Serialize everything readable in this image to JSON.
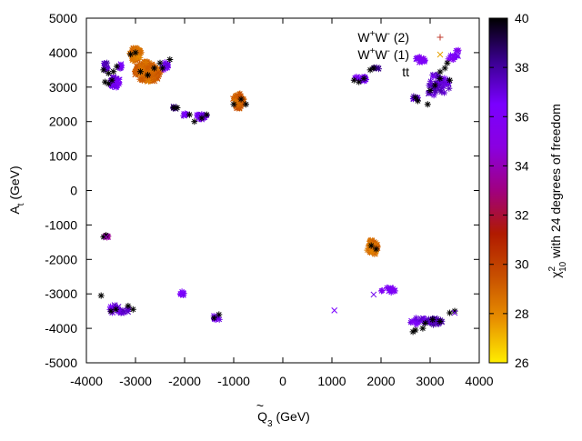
{
  "chart_data": {
    "type": "scatter",
    "xlabel_base": "Q",
    "xlabel_tilde": "~",
    "xlabel_sub": "3",
    "xlabel_unit": " (GeV)",
    "ylabel_base": "A",
    "ylabel_sub": "t",
    "ylabel_unit": " (GeV)",
    "xlim": [
      -4000,
      4000
    ],
    "ylim": [
      -5000,
      5000
    ],
    "x_ticks": [
      -4000,
      -3000,
      -2000,
      -1000,
      0,
      1000,
      2000,
      3000,
      4000
    ],
    "y_ticks": [
      -5000,
      -4000,
      -3000,
      -2000,
      -1000,
      0,
      1000,
      2000,
      3000,
      4000,
      5000
    ],
    "grid": false,
    "legend_position": "top-right",
    "legend": [
      {
        "text_base": "W",
        "sup1": "+",
        "mid": "W",
        "sup2": "-",
        "suffix": " (2)",
        "marker": "plus",
        "color": "#c0392b"
      },
      {
        "text_base": "W",
        "sup1": "+",
        "mid": "W",
        "sup2": "-",
        "suffix": " (1)",
        "marker": "cross",
        "color": "#e6a100"
      },
      {
        "text_plain": "tt",
        "marker": "star",
        "color": "#000000"
      }
    ],
    "colorbar": {
      "label_prefix": "χ",
      "label_sup": "2",
      "label_sub": "10",
      "label_suffix": " with 24 degrees of freedom",
      "min": 26,
      "max": 40,
      "ticks": [
        26,
        28,
        30,
        32,
        34,
        36,
        38,
        40
      ],
      "gradient": [
        "#ffee00",
        "#e89000",
        "#c85000",
        "#b01a00",
        "#a00080",
        "#8a00e0",
        "#7a00ff",
        "#3a0090",
        "#000000"
      ]
    },
    "series": [
      {
        "name": "tt",
        "marker": "star",
        "points": [
          [
            -3650,
            3500
          ],
          [
            -3550,
            3400
          ],
          [
            -3450,
            3450
          ],
          [
            -3620,
            3150
          ],
          [
            -3480,
            3200
          ],
          [
            -3550,
            3100
          ],
          [
            -3380,
            3600
          ],
          [
            -3100,
            3950
          ],
          [
            -3000,
            4000
          ],
          [
            -2900,
            3450
          ],
          [
            -2750,
            3350
          ],
          [
            -2620,
            3550
          ],
          [
            -2500,
            3700
          ],
          [
            -2450,
            3550
          ],
          [
            -2300,
            3800
          ],
          [
            -2220,
            2400
          ],
          [
            -2150,
            2400
          ],
          [
            -1900,
            2200
          ],
          [
            -1800,
            2000
          ],
          [
            -1650,
            2100
          ],
          [
            -1550,
            2200
          ],
          [
            -1000,
            2500
          ],
          [
            -850,
            2650
          ],
          [
            -750,
            2500
          ],
          [
            1450,
            3200
          ],
          [
            1550,
            3150
          ],
          [
            1650,
            3250
          ],
          [
            1780,
            3500
          ],
          [
            1850,
            3550
          ],
          [
            2700,
            2700
          ],
          [
            2750,
            2600
          ],
          [
            2950,
            2500
          ],
          [
            3000,
            2900
          ],
          [
            3100,
            3050
          ],
          [
            3200,
            3250
          ],
          [
            3300,
            3550
          ],
          [
            3350,
            3700
          ],
          [
            3400,
            3200
          ],
          [
            -3600,
            -1300
          ],
          [
            -3650,
            -1350
          ],
          [
            -3700,
            -3050
          ],
          [
            -3500,
            -3500
          ],
          [
            -3400,
            -3450
          ],
          [
            -3150,
            -3350
          ],
          [
            -3050,
            -3450
          ],
          [
            -1400,
            -3700
          ],
          [
            -1300,
            -3600
          ],
          [
            1800,
            -1600
          ],
          [
            1900,
            -1700
          ],
          [
            2650,
            -4100
          ],
          [
            2700,
            -4050
          ],
          [
            2850,
            -4000
          ],
          [
            2900,
            -3850
          ],
          [
            3050,
            -3750
          ],
          [
            3200,
            -3800
          ],
          [
            3400,
            -3550
          ],
          [
            3500,
            -3500
          ]
        ]
      },
      {
        "name": "clusters",
        "marker": "star",
        "clusters": [
          {
            "x": -3600,
            "y": 3600,
            "rx": 80,
            "ry": 120,
            "n": 10,
            "value": 37.5
          },
          {
            "x": -3420,
            "y": 3150,
            "rx": 120,
            "ry": 160,
            "n": 28,
            "value": 36.5
          },
          {
            "x": -3300,
            "y": 3600,
            "rx": 60,
            "ry": 80,
            "n": 6,
            "value": 36.8
          },
          {
            "x": -3000,
            "y": 3950,
            "rx": 120,
            "ry": 200,
            "n": 40,
            "value": 28.4
          },
          {
            "x": -2750,
            "y": 3450,
            "rx": 260,
            "ry": 300,
            "n": 110,
            "value": 28.8
          },
          {
            "x": -2400,
            "y": 3600,
            "rx": 80,
            "ry": 150,
            "n": 10,
            "value": 36.5
          },
          {
            "x": -2200,
            "y": 2400,
            "rx": 50,
            "ry": 30,
            "n": 4,
            "value": 38.5
          },
          {
            "x": -2000,
            "y": 2200,
            "rx": 60,
            "ry": 40,
            "n": 5,
            "value": 36.6
          },
          {
            "x": -1650,
            "y": 2150,
            "rx": 120,
            "ry": 80,
            "n": 14,
            "value": 36.3
          },
          {
            "x": -900,
            "y": 2600,
            "rx": 110,
            "ry": 220,
            "n": 50,
            "value": 29.0
          },
          {
            "x": 1600,
            "y": 3250,
            "rx": 150,
            "ry": 80,
            "n": 14,
            "value": 36.4
          },
          {
            "x": 1900,
            "y": 3550,
            "rx": 60,
            "ry": 60,
            "n": 4,
            "value": 38.2
          },
          {
            "x": 2800,
            "y": 3800,
            "rx": 110,
            "ry": 80,
            "n": 12,
            "value": 36.1
          },
          {
            "x": 3150,
            "y": 3050,
            "rx": 250,
            "ry": 350,
            "n": 40,
            "value": 37.2
          },
          {
            "x": 3400,
            "y": 3900,
            "rx": 150,
            "ry": 150,
            "n": 8,
            "value": 36.2
          },
          {
            "x": 3550,
            "y": 4050,
            "rx": 40,
            "ry": 40,
            "n": 3,
            "value": 35.8
          },
          {
            "x": 2700,
            "y": 2700,
            "rx": 80,
            "ry": 120,
            "n": 6,
            "value": 37.6
          },
          {
            "x": -3600,
            "y": -1350,
            "rx": 50,
            "ry": 60,
            "n": 4,
            "value": 33.5
          },
          {
            "x": -3350,
            "y": -3450,
            "rx": 250,
            "ry": 120,
            "n": 20,
            "value": 36.8
          },
          {
            "x": -2050,
            "y": -2980,
            "rx": 60,
            "ry": 60,
            "n": 6,
            "value": 36.2
          },
          {
            "x": -1350,
            "y": -3700,
            "rx": 80,
            "ry": 80,
            "n": 7,
            "value": 36.7
          },
          {
            "x": 1820,
            "y": -1650,
            "rx": 110,
            "ry": 220,
            "n": 50,
            "value": 28.6
          },
          {
            "x": 2150,
            "y": -2900,
            "rx": 150,
            "ry": 80,
            "n": 12,
            "value": 36.1
          },
          {
            "x": 2750,
            "y": -3800,
            "rx": 200,
            "ry": 120,
            "n": 14,
            "value": 36.6
          },
          {
            "x": 3100,
            "y": -3800,
            "rx": 180,
            "ry": 100,
            "n": 20,
            "value": 37.6
          }
        ]
      },
      {
        "name": "W+W- (1)",
        "marker": "cross",
        "points": [
          [
            1050,
            -3480
          ],
          [
            1850,
            -3020
          ],
          [
            3500,
            -3550
          ],
          [
            -3600,
            -1350
          ],
          [
            2750,
            3850
          ]
        ],
        "values": [
          36.5,
          36.8,
          37.0,
          34.0,
          36.0
        ]
      }
    ]
  }
}
